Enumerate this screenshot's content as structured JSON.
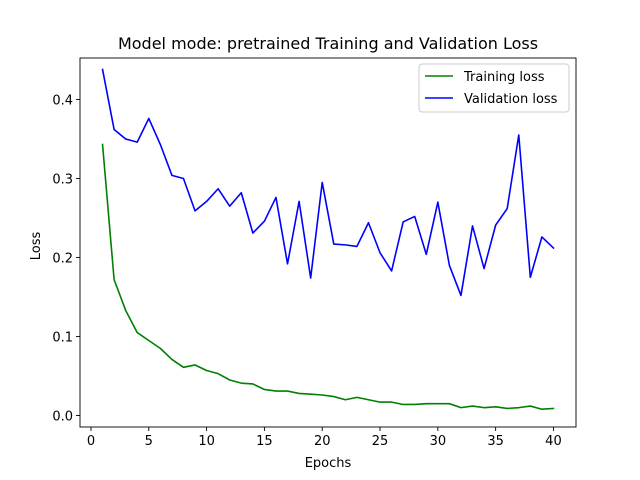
{
  "chart_data": {
    "type": "line",
    "title": "Model mode: pretrained Training and Validation Loss",
    "xlabel": "Epochs",
    "ylabel": "Loss",
    "xlim": [
      -0.95,
      41.95
    ],
    "ylim": [
      -0.0145,
      0.4525
    ],
    "xticks": [
      0,
      5,
      10,
      15,
      20,
      25,
      30,
      35,
      40
    ],
    "yticks": [
      0.0,
      0.1,
      0.2,
      0.3,
      0.4
    ],
    "xtick_labels": [
      "0",
      "5",
      "10",
      "15",
      "20",
      "25",
      "30",
      "35",
      "40"
    ],
    "ytick_labels": [
      "0.0",
      "0.1",
      "0.2",
      "0.3",
      "0.4"
    ],
    "grid": false,
    "legend_position": "top-right",
    "x": [
      1,
      2,
      3,
      4,
      5,
      6,
      7,
      8,
      9,
      10,
      11,
      12,
      13,
      14,
      15,
      16,
      17,
      18,
      19,
      20,
      21,
      22,
      23,
      24,
      25,
      26,
      27,
      28,
      29,
      30,
      31,
      32,
      33,
      34,
      35,
      36,
      37,
      38,
      39,
      40
    ],
    "series": [
      {
        "name": "Training loss",
        "color": "#008000",
        "values": [
          0.343,
          0.172,
          0.133,
          0.105,
          0.095,
          0.085,
          0.071,
          0.061,
          0.064,
          0.057,
          0.053,
          0.045,
          0.041,
          0.04,
          0.033,
          0.031,
          0.031,
          0.028,
          0.027,
          0.026,
          0.024,
          0.02,
          0.023,
          0.02,
          0.017,
          0.017,
          0.014,
          0.014,
          0.015,
          0.015,
          0.015,
          0.01,
          0.012,
          0.01,
          0.011,
          0.009,
          0.01,
          0.012,
          0.008,
          0.009
        ]
      },
      {
        "name": "Validation loss",
        "color": "#0000ff",
        "values": [
          0.438,
          0.362,
          0.35,
          0.346,
          0.376,
          0.343,
          0.304,
          0.3,
          0.259,
          0.271,
          0.287,
          0.265,
          0.282,
          0.231,
          0.246,
          0.276,
          0.192,
          0.271,
          0.174,
          0.295,
          0.217,
          0.216,
          0.214,
          0.244,
          0.206,
          0.183,
          0.245,
          0.252,
          0.204,
          0.27,
          0.19,
          0.152,
          0.24,
          0.186,
          0.241,
          0.262,
          0.355,
          0.175,
          0.226,
          0.212
        ]
      }
    ]
  }
}
